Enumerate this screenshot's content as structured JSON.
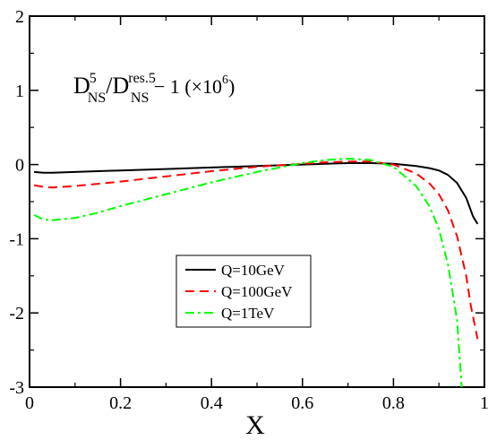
{
  "chart_data": {
    "type": "line",
    "title": "",
    "xlabel": "X",
    "ylabel": "",
    "xlim": [
      0,
      1
    ],
    "ylim": [
      -3,
      2
    ],
    "grid": false,
    "legend_position": "lower-center",
    "x_ticks": [
      0,
      0.2,
      0.4,
      0.6,
      0.8,
      1
    ],
    "x_tick_labels": [
      "0",
      "0.2",
      "0.4",
      "0.6",
      "0.8",
      "1"
    ],
    "y_ticks": [
      -3,
      -2,
      -1,
      0,
      1,
      2
    ],
    "y_tick_labels": [
      "-3",
      "-2",
      "-1",
      "0",
      "1",
      "2"
    ],
    "annotation": {
      "d": "D",
      "sup1": "5",
      "sub1": "NS",
      "slash_d": "/D",
      "sup2": "res.5",
      "sub2": "NS",
      "tail1": " − 1  (×10",
      "sup3": "6",
      "tail2": ")"
    },
    "series": [
      {
        "name": "Q=10GeV",
        "color": "#000000",
        "dash": "solid",
        "x": [
          0.01,
          0.03,
          0.05,
          0.1,
          0.2,
          0.3,
          0.4,
          0.5,
          0.6,
          0.7,
          0.75,
          0.8,
          0.85,
          0.88,
          0.9,
          0.92,
          0.94,
          0.96,
          0.975,
          0.985
        ],
        "y": [
          -0.1,
          -0.11,
          -0.11,
          -0.1,
          -0.08,
          -0.06,
          -0.04,
          -0.02,
          0.0,
          0.02,
          0.02,
          0.01,
          -0.02,
          -0.05,
          -0.08,
          -0.14,
          -0.25,
          -0.45,
          -0.7,
          -0.8
        ]
      },
      {
        "name": "Q=100GeV",
        "color": "#ff0000",
        "dash": "dashed",
        "x": [
          0.01,
          0.03,
          0.05,
          0.1,
          0.2,
          0.3,
          0.4,
          0.5,
          0.6,
          0.65,
          0.7,
          0.75,
          0.8,
          0.85,
          0.88,
          0.9,
          0.92,
          0.94,
          0.96,
          0.97,
          0.985
        ],
        "y": [
          -0.28,
          -0.3,
          -0.31,
          -0.29,
          -0.23,
          -0.16,
          -0.09,
          -0.03,
          0.01,
          0.03,
          0.04,
          0.04,
          0.0,
          -0.12,
          -0.26,
          -0.4,
          -0.62,
          -0.97,
          -1.5,
          -1.9,
          -2.35
        ]
      },
      {
        "name": "Q=1TeV",
        "color": "#00ff00",
        "dash": "dashdot",
        "x": [
          0.01,
          0.03,
          0.05,
          0.1,
          0.15,
          0.2,
          0.3,
          0.4,
          0.5,
          0.6,
          0.65,
          0.7,
          0.75,
          0.8,
          0.85,
          0.88,
          0.9,
          0.92,
          0.94,
          0.95
        ],
        "y": [
          -0.68,
          -0.74,
          -0.75,
          -0.72,
          -0.65,
          -0.56,
          -0.4,
          -0.24,
          -0.1,
          0.02,
          0.06,
          0.08,
          0.06,
          -0.03,
          -0.29,
          -0.57,
          -0.87,
          -1.35,
          -2.1,
          -3.0
        ]
      }
    ]
  }
}
